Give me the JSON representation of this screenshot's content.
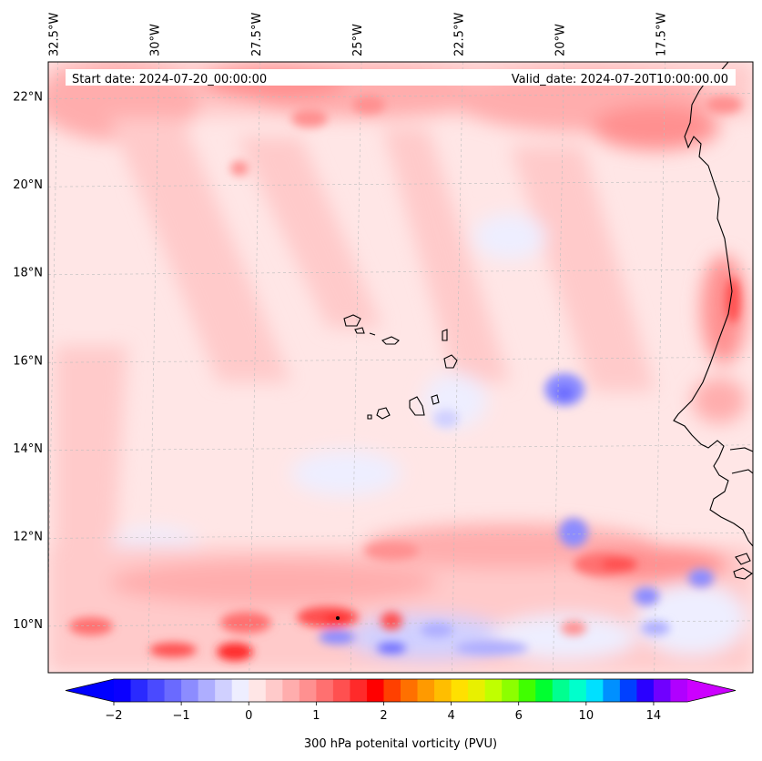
{
  "map": {
    "start_date_label": "Start date: 2024-07-20_00:00:00",
    "valid_date_label": "Valid_date: 2024-07-20T10:00:00.00",
    "lon_ticks": [
      {
        "value": -32.5,
        "label": "32.5°W"
      },
      {
        "value": -30.0,
        "label": "30°W"
      },
      {
        "value": -27.5,
        "label": "27.5°W"
      },
      {
        "value": -25.0,
        "label": "25°W"
      },
      {
        "value": -22.5,
        "label": "22.5°W"
      },
      {
        "value": -20.0,
        "label": "20°W"
      },
      {
        "value": -17.5,
        "label": "17.5°W"
      }
    ],
    "lat_ticks": [
      {
        "value": 22,
        "label": "22°N"
      },
      {
        "value": 20,
        "label": "20°N"
      },
      {
        "value": 18,
        "label": "18°N"
      },
      {
        "value": 16,
        "label": "16°N"
      },
      {
        "value": 14,
        "label": "14°N"
      },
      {
        "value": 12,
        "label": "12°N"
      },
      {
        "value": 10,
        "label": "10°N"
      }
    ],
    "extent": {
      "lon_min": -32.6,
      "lon_max": -15.2,
      "lat_min": 8.9,
      "lat_max": 22.8
    }
  },
  "colorbar": {
    "title": "300 hPa potenital vorticity (PVU)",
    "tick_labels": [
      "−2",
      "−1",
      "0",
      "1",
      "2",
      "4",
      "6",
      "10",
      "14"
    ],
    "colors": [
      "#0a00ff",
      "#2a2aff",
      "#4a4aff",
      "#6a6aff",
      "#8c8cff",
      "#aeaeff",
      "#d0d0ff",
      "#eeeeff",
      "#ffe6e6",
      "#ffcaca",
      "#ffadad",
      "#ff9090",
      "#ff7070",
      "#ff5050",
      "#ff2a2a",
      "#ff0000",
      "#ff4000",
      "#ff7000",
      "#ff9a00",
      "#ffbe00",
      "#ffe000",
      "#e8f000",
      "#c0ff00",
      "#8cff00",
      "#40ff00",
      "#00ff30",
      "#00ff90",
      "#00ffcc",
      "#00e0ff",
      "#0090ff",
      "#0040ff",
      "#2a00ff",
      "#7000ff",
      "#b000ff"
    ],
    "under_color": "#0000ff",
    "over_color": "#cc00ff"
  }
}
